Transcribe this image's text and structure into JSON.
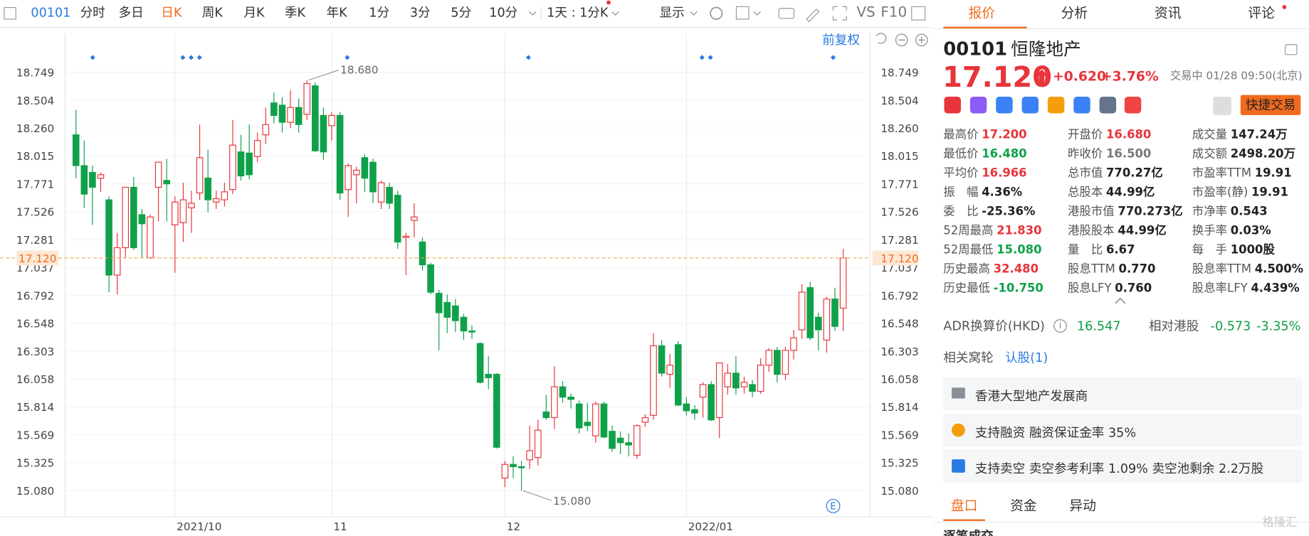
{
  "toolbar": {
    "code": "00101",
    "periods": [
      "分时",
      "多日",
      "日K",
      "周K",
      "月K",
      "季K",
      "年K",
      "1分",
      "3分",
      "5分",
      "10分"
    ],
    "interval": "1天 : 1分K",
    "display": "显示",
    "vs": "VS",
    "f10": "F10"
  },
  "chart_data": {
    "type": "candlestick",
    "categories": [
      null,
      null,
      null,
      null,
      null,
      null,
      null,
      null,
      null,
      null,
      null,
      null,
      "2021/10",
      null,
      null,
      null,
      null,
      null,
      null,
      null,
      null,
      null,
      null,
      null,
      null,
      null,
      null,
      null,
      null,
      null,
      null,
      "11",
      null,
      null,
      null,
      null,
      null,
      null,
      null,
      null,
      null,
      null,
      null,
      null,
      null,
      null,
      null,
      null,
      null,
      null,
      null,
      null,
      "12",
      null,
      null,
      null,
      null,
      null,
      null,
      null,
      null,
      null,
      null,
      null,
      null,
      null,
      null,
      null,
      null,
      null,
      null,
      null,
      null,
      null,
      "2022/01",
      null,
      null,
      null,
      null,
      null,
      null,
      null,
      null,
      null,
      null,
      null,
      null,
      null,
      null,
      null,
      null,
      null,
      null,
      null
    ],
    "open": [
      18.2,
      17.93,
      17.87,
      17.82,
      17.63,
      16.97,
      17.21,
      17.74,
      17.5,
      17.12,
      17.74,
      17.8,
      17.41,
      17.43,
      17.56,
      17.69,
      17.82,
      17.61,
      17.63,
      17.72,
      18.05,
      18.04,
      18.01,
      18.2,
      18.48,
      18.46,
      18.31,
      18.44,
      18.38,
      18.63,
      18.37,
      18.28,
      18.37,
      17.72,
      17.85,
      18.0,
      17.96,
      17.61,
      17.74,
      17.67,
      17.3,
      17.45,
      17.26,
      17.06,
      16.81,
      16.73,
      16.7,
      16.6,
      16.48,
      16.37,
      16.1,
      16.1,
      15.19,
      15.31,
      15.29,
      15.35,
      15.37,
      15.77,
      15.72,
      15.99,
      15.9,
      15.84,
      15.68,
      15.56,
      15.84,
      15.6,
      15.54,
      15.5,
      15.39,
      15.68,
      15.74,
      16.35,
      16.1,
      16.36,
      15.84,
      15.79,
      15.9,
      16.01,
      15.72,
      15.99,
      16.11,
      15.99,
      16.01,
      15.95,
      16.18,
      16.31,
      16.1,
      16.31,
      16.49,
      16.86,
      16.6,
      16.4,
      16.76,
      16.68
    ],
    "high": [
      18.42,
      18.15,
      17.93,
      17.87,
      17.66,
      17.34,
      17.74,
      17.83,
      17.55,
      17.5,
      17.96,
      17.99,
      17.66,
      17.78,
      17.71,
      18.29,
      18.07,
      17.71,
      17.78,
      18.33,
      18.2,
      18.29,
      18.22,
      18.44,
      18.57,
      18.53,
      18.59,
      18.52,
      18.68,
      18.66,
      18.44,
      18.4,
      18.4,
      17.95,
      17.92,
      18.03,
      17.99,
      17.8,
      17.78,
      17.71,
      17.34,
      17.6,
      17.3,
      17.08,
      16.84,
      16.8,
      16.76,
      16.63,
      16.53,
      16.38,
      16.26,
      16.11,
      15.34,
      15.38,
      15.34,
      15.65,
      15.7,
      15.92,
      16.17,
      16.04,
      15.93,
      15.87,
      15.85,
      15.86,
      15.86,
      15.65,
      15.6,
      15.58,
      15.66,
      15.75,
      16.46,
      16.4,
      16.28,
      16.39,
      15.9,
      15.83,
      16.03,
      16.04,
      16.2,
      16.19,
      16.26,
      16.08,
      16.05,
      16.24,
      16.33,
      16.34,
      16.34,
      16.49,
      16.89,
      16.91,
      16.64,
      16.78,
      16.86,
      17.2
    ],
    "low": [
      17.82,
      17.56,
      17.41,
      17.7,
      16.82,
      16.8,
      17.12,
      17.19,
      17.12,
      17.12,
      17.44,
      17.44,
      16.99,
      17.26,
      17.34,
      17.63,
      17.52,
      17.55,
      17.57,
      17.68,
      17.8,
      17.81,
      17.96,
      18.12,
      18.3,
      18.22,
      18.26,
      18.22,
      18.33,
      18.05,
      17.98,
      18.15,
      17.63,
      17.48,
      17.6,
      17.7,
      17.6,
      17.55,
      17.55,
      17.2,
      16.97,
      17.3,
      17.01,
      16.8,
      16.31,
      16.46,
      16.47,
      16.4,
      16.41,
      16.02,
      15.97,
      15.45,
      15.11,
      15.19,
      15.08,
      15.27,
      15.3,
      15.7,
      15.62,
      15.85,
      15.8,
      15.58,
      15.6,
      15.5,
      15.54,
      15.42,
      15.4,
      15.38,
      15.36,
      15.64,
      15.7,
      16.08,
      15.98,
      15.82,
      15.74,
      15.7,
      15.72,
      15.69,
      15.54,
      15.92,
      15.92,
      15.93,
      15.9,
      15.93,
      16.12,
      16.03,
      16.05,
      16.23,
      16.41,
      16.4,
      16.31,
      16.29,
      16.48,
      16.48
    ],
    "close": [
      17.93,
      17.68,
      17.74,
      17.85,
      16.97,
      17.21,
      17.74,
      17.21,
      17.42,
      17.48,
      17.96,
      17.77,
      17.61,
      17.63,
      17.6,
      18.0,
      17.63,
      17.64,
      17.7,
      18.11,
      17.84,
      17.85,
      18.15,
      18.29,
      18.37,
      18.31,
      18.44,
      18.29,
      18.65,
      18.06,
      18.05,
      18.37,
      17.69,
      17.93,
      17.89,
      17.82,
      17.7,
      17.78,
      17.6,
      17.26,
      17.31,
      17.48,
      17.06,
      16.82,
      16.64,
      16.6,
      16.57,
      16.48,
      16.47,
      16.03,
      16.07,
      15.46,
      15.31,
      15.29,
      15.28,
      15.43,
      15.61,
      15.72,
      15.99,
      15.9,
      15.88,
      15.63,
      15.65,
      15.84,
      15.55,
      15.45,
      15.5,
      15.48,
      15.65,
      15.72,
      16.35,
      16.11,
      16.18,
      15.83,
      15.78,
      15.76,
      16.01,
      15.7,
      16.2,
      16.11,
      15.98,
      16.03,
      15.95,
      16.18,
      16.31,
      16.1,
      16.31,
      16.42,
      16.82,
      16.42,
      16.49,
      16.76,
      16.52,
      17.12
    ],
    "up_color": "#e8343a",
    "down_color": "#0fa14a",
    "ylim": [
      14.85,
      19.09
    ],
    "yticks": [
      18.749,
      18.504,
      {
        "value": 18.26,
        "label": "18.260"
      },
      18.015,
      17.771,
      17.526,
      17.281,
      17.037,
      16.792,
      16.548,
      16.303,
      16.058,
      15.814,
      15.569,
      15.325,
      {
        "value": 15.08,
        "label": "15.080"
      }
    ],
    "grid": true,
    "last_price": {
      "value": 17.12,
      "label": "17.120"
    },
    "high_label": {
      "value": 18.68,
      "label": "18.680"
    },
    "low_label": {
      "value": 15.08,
      "label": "15.080"
    },
    "adjust": "前复权"
  },
  "panel": {
    "tabs": [
      "报价",
      "分析",
      "资讯",
      "评论"
    ],
    "code": "00101",
    "name": "恒隆地产",
    "price": "17.120",
    "change": "+0.620",
    "change_pct": "+3.76%",
    "status": "交易中 01/28 09:50(北京)",
    "trade_button": "快捷交易",
    "stats": [
      [
        {
          "label": "最高价",
          "value": "17.200",
          "color": "#e8343a"
        },
        {
          "label": "开盘价",
          "value": "16.680",
          "color": "#e8343a"
        },
        {
          "label": "成交量",
          "value": "147.24万"
        }
      ],
      [
        {
          "label": "最低价",
          "value": "16.480",
          "color": "#0fa14a"
        },
        {
          "label": "昨收价",
          "value": "16.500",
          "color": "#777777"
        },
        {
          "label": "成交额",
          "value": "2498.20万"
        }
      ],
      [
        {
          "label": "平均价",
          "value": "16.966",
          "color": "#e8343a"
        },
        {
          "label": "总市值",
          "value": "770.27亿"
        },
        {
          "label": "市盈率TTM",
          "value": "19.91"
        }
      ],
      [
        {
          "label": "振　幅",
          "value": "4.36%"
        },
        {
          "label": "总股本",
          "value": "44.99亿"
        },
        {
          "label": "市盈率(静)",
          "value": "19.91"
        }
      ],
      [
        {
          "label": "委　比",
          "value": "-25.36%"
        },
        {
          "label": "港股市值",
          "value": "770.273亿"
        },
        {
          "label": "市净率",
          "value": "0.543"
        }
      ],
      [
        {
          "label": "52周最高",
          "value": "21.830",
          "color": "#e8343a"
        },
        {
          "label": "港股股本",
          "value": "44.99亿"
        },
        {
          "label": "换手率",
          "value": "0.03%"
        }
      ],
      [
        {
          "label": "52周最低",
          "value": "15.080",
          "color": "#0fa14a"
        },
        {
          "label": "量　比",
          "value": "6.67"
        },
        {
          "label": "每　手",
          "value": "1000股"
        }
      ],
      [
        {
          "label": "历史最高",
          "value": "32.480",
          "color": "#e8343a"
        },
        {
          "label": "股息TTM",
          "value": "0.770"
        },
        {
          "label": "股息率TTM",
          "value": "4.500%"
        }
      ],
      [
        {
          "label": "历史最低",
          "value": "-10.750",
          "color": "#0fa14a"
        },
        {
          "label": "股息LFY",
          "value": "0.760"
        },
        {
          "label": "股息率LFY",
          "value": "4.439%"
        }
      ]
    ],
    "adr_label": "ADR换算价(HKD)",
    "adr_value": "16.547",
    "relative_label": "相对港股",
    "relative_change": "-0.573",
    "relative_pct": "-3.35%",
    "warrant_label": "相关窝轮",
    "warrant_link": "认股(1)",
    "features": [
      "香港大型地产发展商",
      "支持融资 融资保证金率 35%",
      "支持卖空 卖空参考利率 1.09% 卖空池剩余 2.2万股"
    ],
    "bottom_tabs": [
      "盘口",
      "资金",
      "异动"
    ],
    "next_section": "逐笔成交"
  },
  "watermark": "格隆汇"
}
